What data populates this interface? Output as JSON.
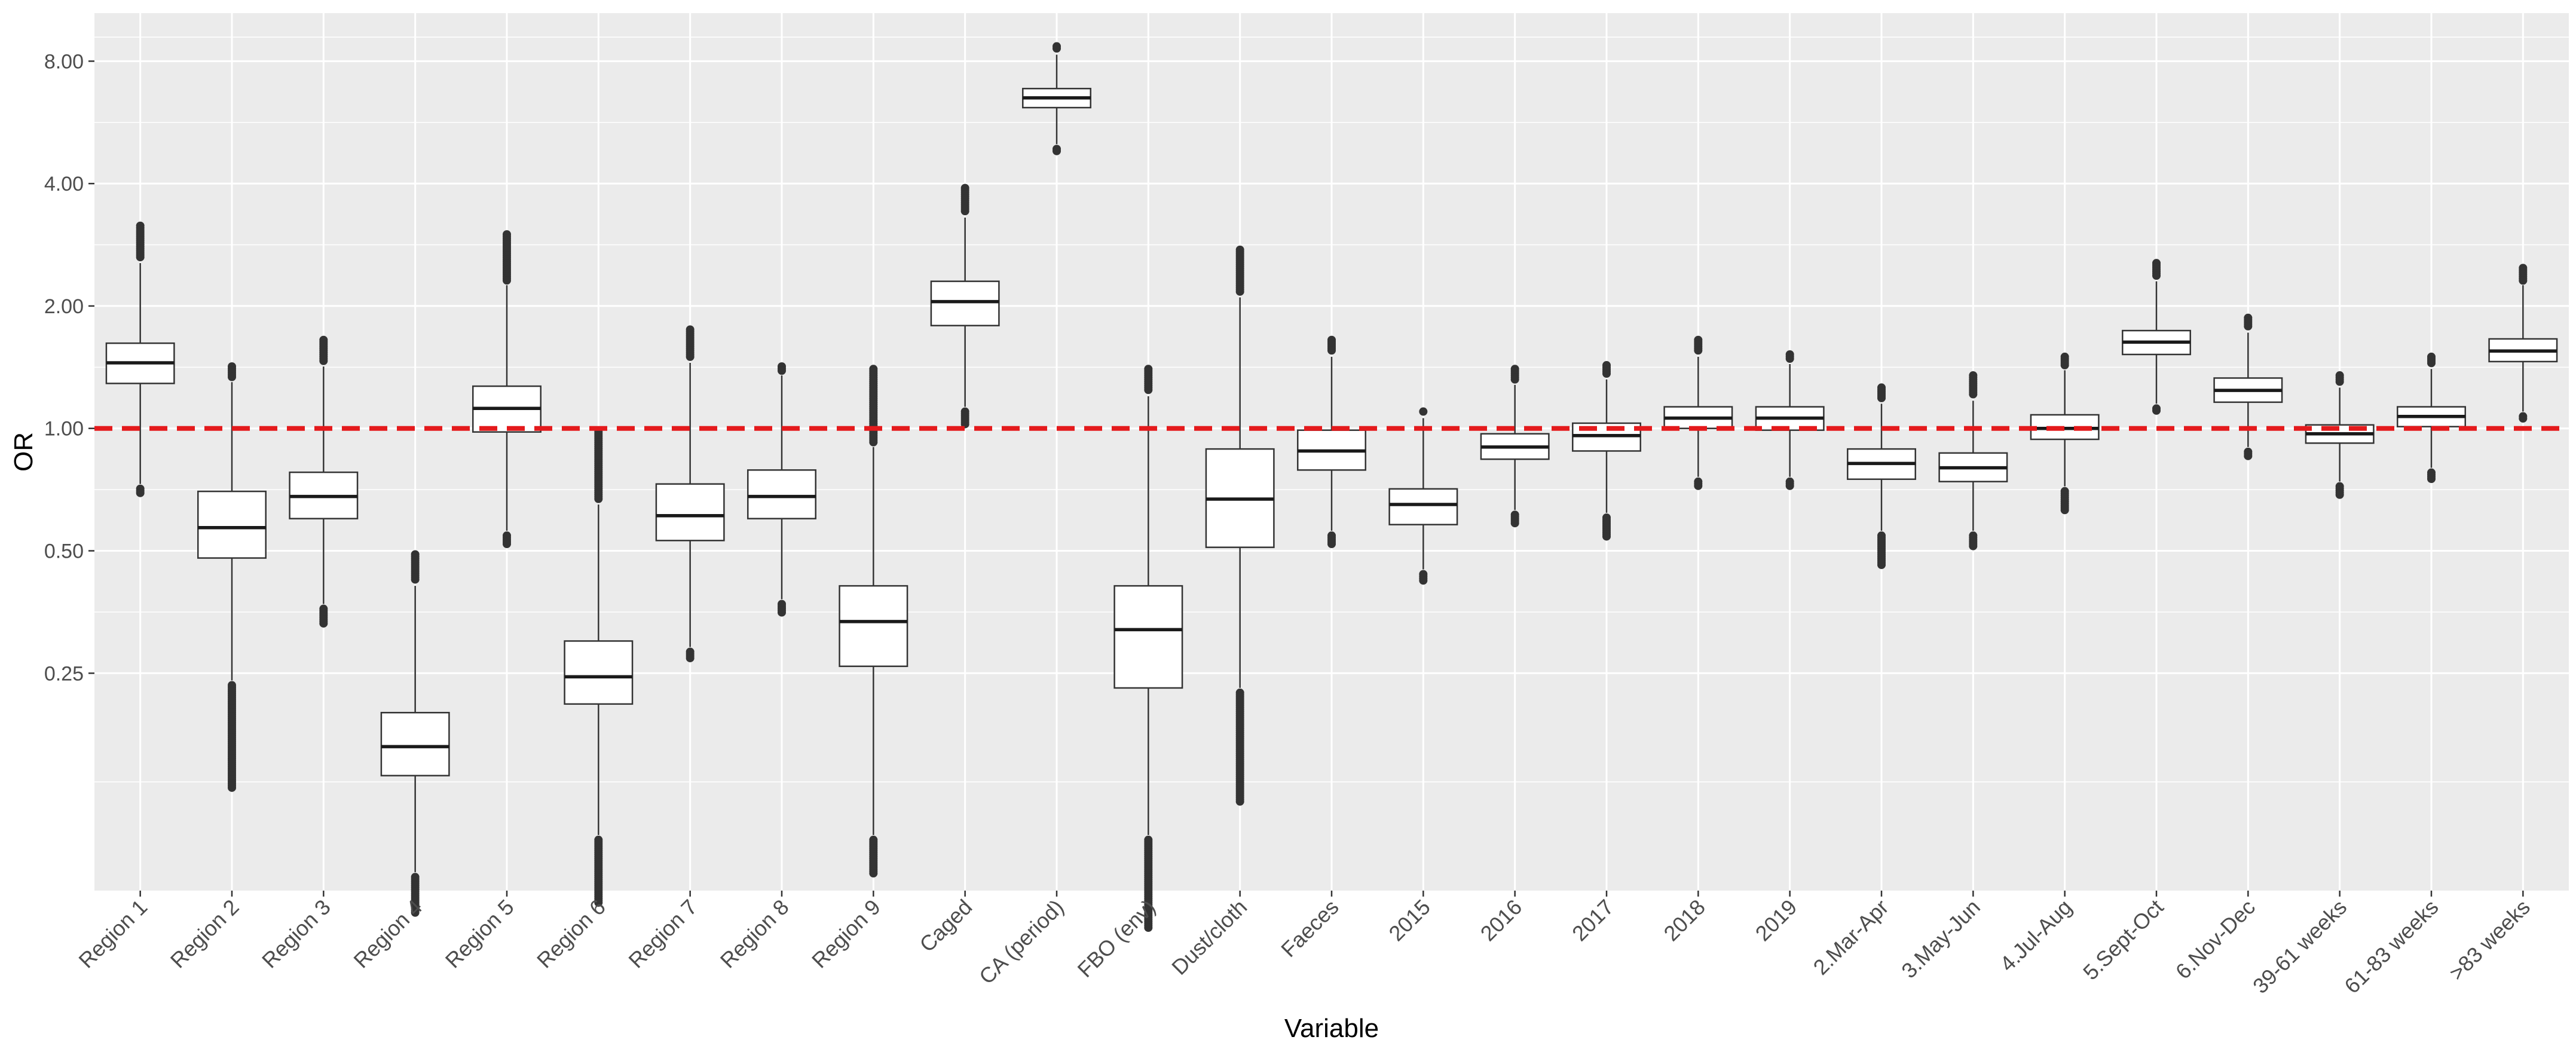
{
  "chart_data": {
    "type": "boxplot",
    "title": "",
    "xlabel": "Variable",
    "ylabel": "OR",
    "y_scale": "log2",
    "ylim": [
      0.073,
      10.5
    ],
    "y_ticks": [
      8.0,
      4.0,
      2.0,
      1.0,
      0.5,
      0.25
    ],
    "y_tick_labels": [
      "8.00",
      "4.00",
      "2.00",
      "1.00",
      "0.50",
      "0.25"
    ],
    "reference_line": {
      "y": 1.0,
      "style": "dashed",
      "color": "#e41a1c"
    },
    "colors": {
      "panel": "#ebebeb",
      "grid": "#ffffff",
      "box_fill": "#ffffff",
      "box_line": "#333333",
      "outlier": "#333333"
    },
    "categories": [
      "Region 1",
      "Region 2",
      "Region 3",
      "Region 4",
      "Region 5",
      "Region 6",
      "Region 7",
      "Region 8",
      "Region 9",
      "Caged",
      "CA (period)",
      "FBO (env)",
      "Dust/cloth",
      "Faeces",
      "2015",
      "2016",
      "2017",
      "2018",
      "2019",
      "2.Mar-Apr",
      "3.May-Jun",
      "4.Jul-Aug",
      "5.Sept-Oct",
      "6.Nov-Dec",
      "39-61 weeks",
      "61-83 weeks",
      ">83 weeks"
    ],
    "boxes": [
      {
        "q1": 1.29,
        "median": 1.45,
        "q3": 1.62,
        "whisker_low": 0.73,
        "whisker_high": 2.55,
        "outlier_low": 0.69,
        "outlier_high": 3.15
      },
      {
        "q1": 0.48,
        "median": 0.57,
        "q3": 0.7,
        "whisker_low": 0.24,
        "whisker_high": 1.3,
        "outlier_low": 0.13,
        "outlier_high": 1.42
      },
      {
        "q1": 0.6,
        "median": 0.68,
        "q3": 0.78,
        "whisker_low": 0.37,
        "whisker_high": 1.42,
        "outlier_low": 0.33,
        "outlier_high": 1.65
      },
      {
        "q1": 0.14,
        "median": 0.165,
        "q3": 0.2,
        "whisker_low": 0.081,
        "whisker_high": 0.41,
        "outlier_low": 0.064,
        "outlier_high": 0.49
      },
      {
        "q1": 0.98,
        "median": 1.12,
        "q3": 1.27,
        "whisker_low": 0.56,
        "whisker_high": 2.25,
        "outlier_low": 0.52,
        "outlier_high": 3.0
      },
      {
        "q1": 0.21,
        "median": 0.245,
        "q3": 0.3,
        "whisker_low": 0.1,
        "whisker_high": 0.65,
        "outlier_low": 0.068,
        "outlier_high": 0.98
      },
      {
        "q1": 0.53,
        "median": 0.61,
        "q3": 0.73,
        "whisker_low": 0.29,
        "whisker_high": 1.45,
        "outlier_low": 0.27,
        "outlier_high": 1.75
      },
      {
        "q1": 0.6,
        "median": 0.68,
        "q3": 0.79,
        "whisker_low": 0.38,
        "whisker_high": 1.35,
        "outlier_low": 0.35,
        "outlier_high": 1.42
      },
      {
        "q1": 0.26,
        "median": 0.335,
        "q3": 0.41,
        "whisker_low": 0.1,
        "whisker_high": 0.9,
        "outlier_low": 0.08,
        "outlier_high": 1.4
      },
      {
        "q1": 1.79,
        "median": 2.05,
        "q3": 2.3,
        "whisker_low": 1.13,
        "whisker_high": 3.3,
        "outlier_low": 1.02,
        "outlier_high": 3.9
      },
      {
        "q1": 6.15,
        "median": 6.5,
        "q3": 6.85,
        "whisker_low": 5.0,
        "whisker_high": 8.3,
        "outlier_low": 4.8,
        "outlier_high": 8.7
      },
      {
        "q1": 0.23,
        "median": 0.32,
        "q3": 0.41,
        "whisker_low": 0.1,
        "whisker_high": 1.2,
        "outlier_low": 0.059,
        "outlier_high": 1.4
      },
      {
        "q1": 0.51,
        "median": 0.67,
        "q3": 0.89,
        "whisker_low": 0.23,
        "whisker_high": 2.1,
        "outlier_low": 0.12,
        "outlier_high": 2.75
      },
      {
        "q1": 0.79,
        "median": 0.88,
        "q3": 0.99,
        "whisker_low": 0.56,
        "whisker_high": 1.5,
        "outlier_low": 0.52,
        "outlier_high": 1.65
      },
      {
        "q1": 0.58,
        "median": 0.65,
        "q3": 0.71,
        "whisker_low": 0.45,
        "whisker_high": 1.06,
        "outlier_low": 0.42,
        "outlier_high": 1.1
      },
      {
        "q1": 0.84,
        "median": 0.9,
        "q3": 0.97,
        "whisker_low": 0.63,
        "whisker_high": 1.28,
        "outlier_low": 0.58,
        "outlier_high": 1.4
      },
      {
        "q1": 0.88,
        "median": 0.96,
        "q3": 1.03,
        "whisker_low": 0.62,
        "whisker_high": 1.32,
        "outlier_low": 0.54,
        "outlier_high": 1.43
      },
      {
        "q1": 1.0,
        "median": 1.06,
        "q3": 1.13,
        "whisker_low": 0.76,
        "whisker_high": 1.5,
        "outlier_low": 0.72,
        "outlier_high": 1.65
      },
      {
        "q1": 0.99,
        "median": 1.06,
        "q3": 1.13,
        "whisker_low": 0.76,
        "whisker_high": 1.44,
        "outlier_low": 0.72,
        "outlier_high": 1.52
      },
      {
        "q1": 0.75,
        "median": 0.82,
        "q3": 0.89,
        "whisker_low": 0.56,
        "whisker_high": 1.15,
        "outlier_low": 0.46,
        "outlier_high": 1.26
      },
      {
        "q1": 0.74,
        "median": 0.8,
        "q3": 0.87,
        "whisker_low": 0.56,
        "whisker_high": 1.17,
        "outlier_low": 0.51,
        "outlier_high": 1.35
      },
      {
        "q1": 0.94,
        "median": 1.0,
        "q3": 1.08,
        "whisker_low": 0.72,
        "whisker_high": 1.39,
        "outlier_low": 0.63,
        "outlier_high": 1.5
      },
      {
        "q1": 1.52,
        "median": 1.63,
        "q3": 1.74,
        "whisker_low": 1.15,
        "whisker_high": 2.3,
        "outlier_low": 1.1,
        "outlier_high": 2.55
      },
      {
        "q1": 1.16,
        "median": 1.24,
        "q3": 1.33,
        "whisker_low": 0.9,
        "whisker_high": 1.72,
        "outlier_low": 0.85,
        "outlier_high": 1.87
      },
      {
        "q1": 0.92,
        "median": 0.97,
        "q3": 1.02,
        "whisker_low": 0.74,
        "whisker_high": 1.26,
        "outlier_low": 0.68,
        "outlier_high": 1.35
      },
      {
        "q1": 1.01,
        "median": 1.07,
        "q3": 1.13,
        "whisker_low": 0.8,
        "whisker_high": 1.4,
        "outlier_low": 0.75,
        "outlier_high": 1.5
      },
      {
        "q1": 1.46,
        "median": 1.55,
        "q3": 1.66,
        "whisker_low": 1.1,
        "whisker_high": 2.25,
        "outlier_low": 1.05,
        "outlier_high": 2.48
      }
    ]
  }
}
